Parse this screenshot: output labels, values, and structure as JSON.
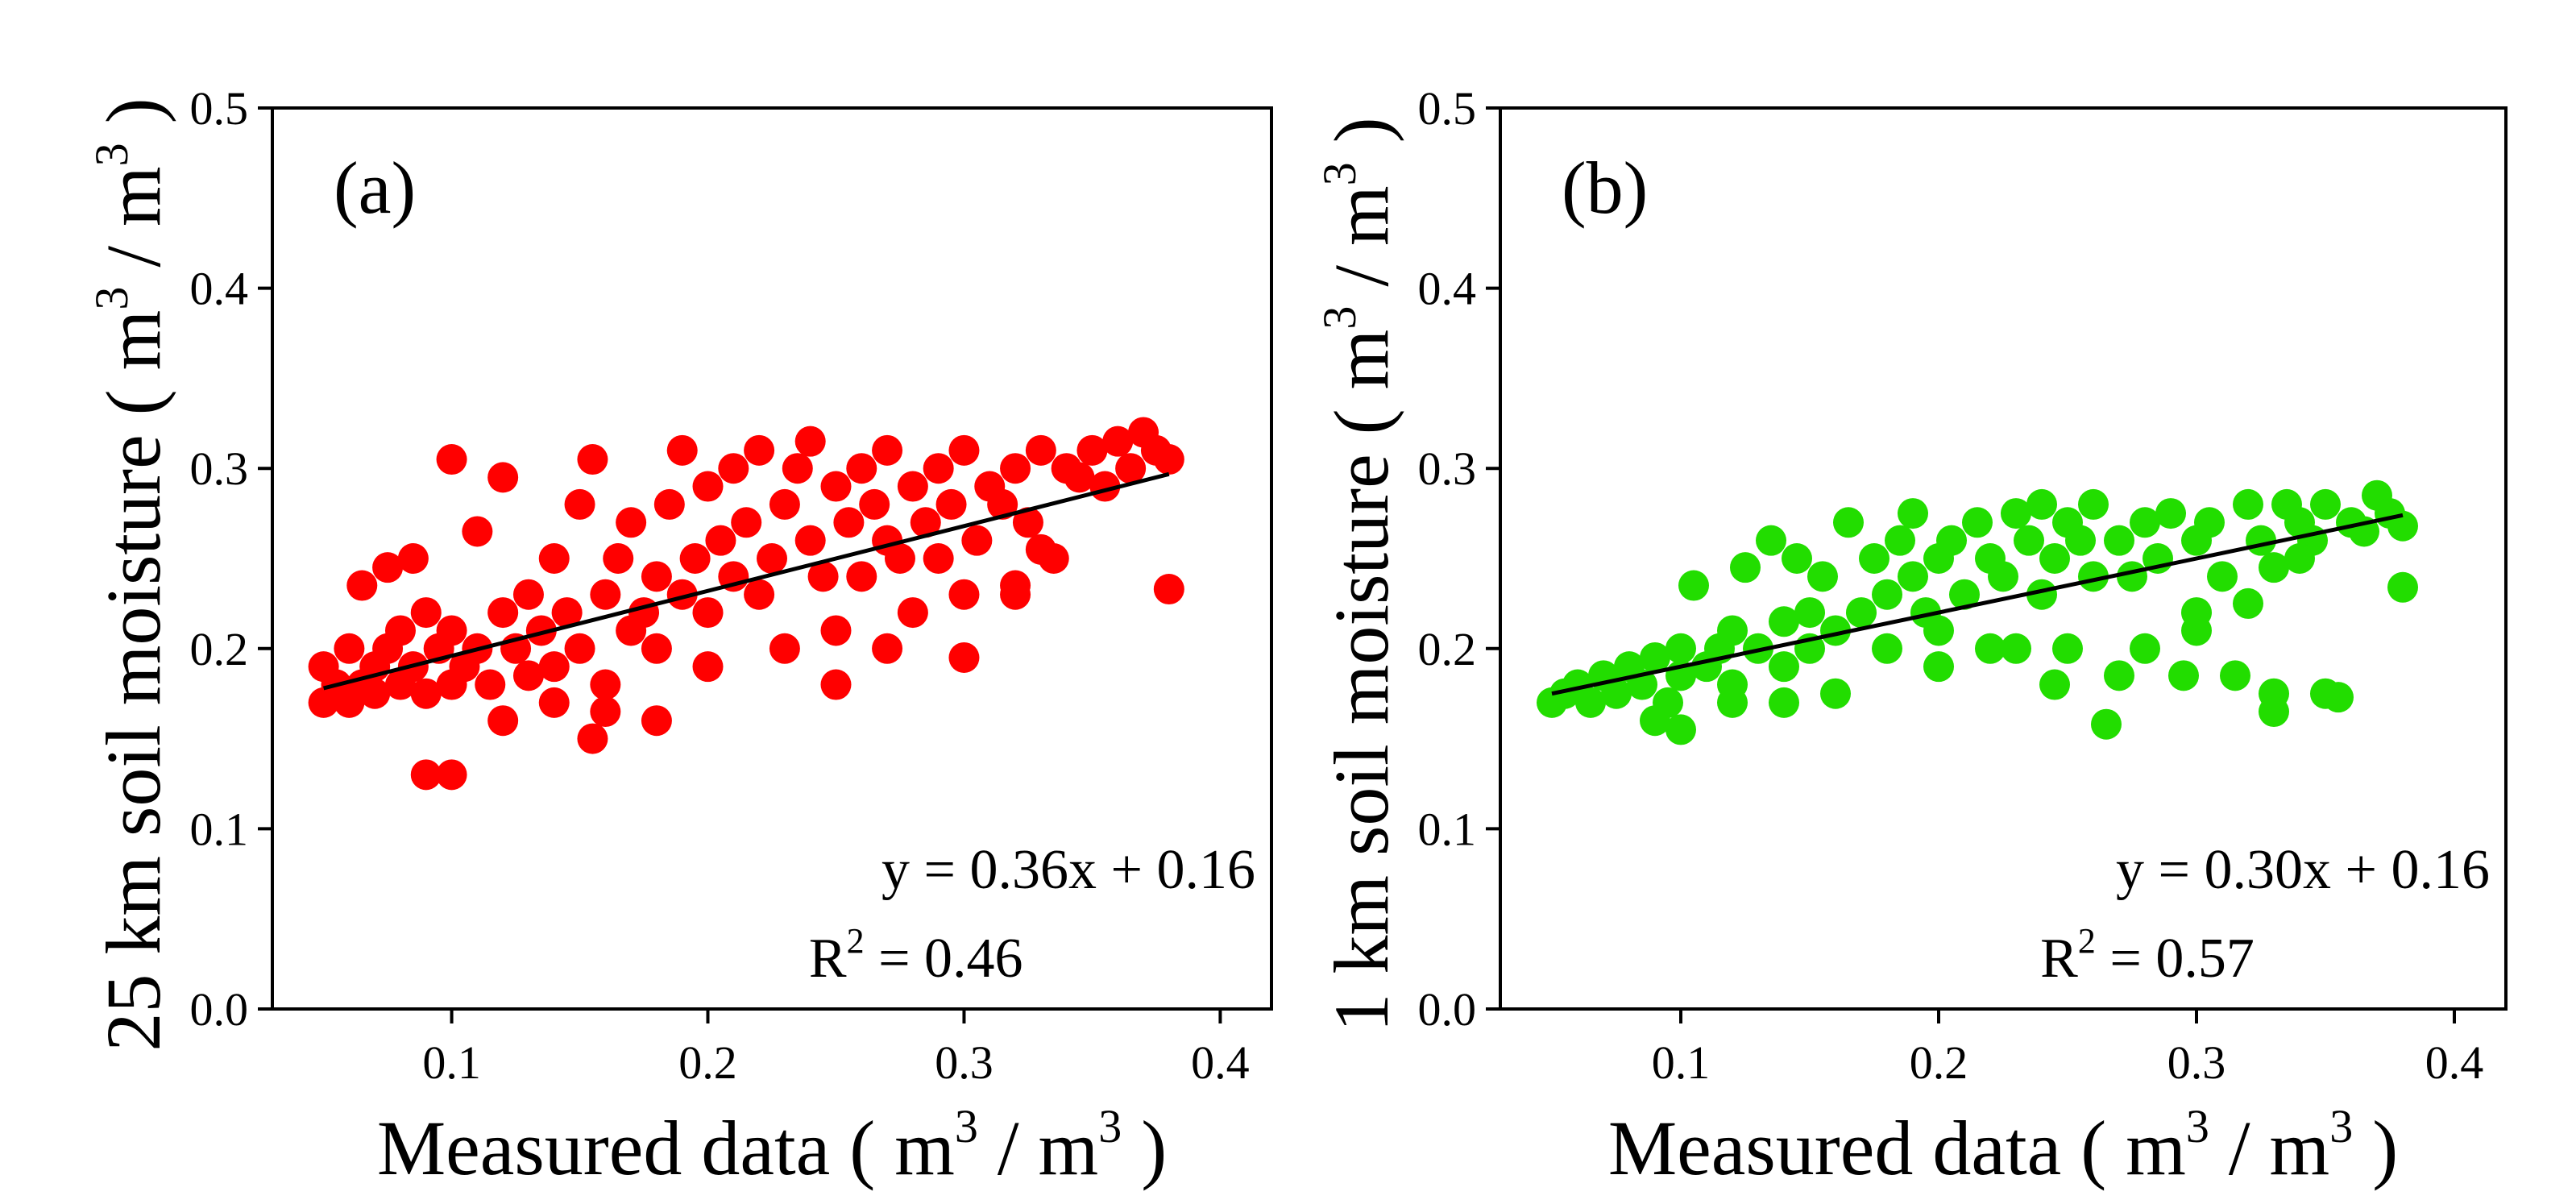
{
  "chart_data": [
    {
      "type": "scatter",
      "panel_label": "(a)",
      "xlabel": "Measured data ( m3 / m3 )",
      "ylabel": "25 km soil moisture ( m3 / m3 )",
      "axis_unit": {
        "base": "m",
        "sup": "3"
      },
      "xlim": [
        0.03,
        0.42
      ],
      "ylim": [
        0.0,
        0.5
      ],
      "xticks": [
        0.1,
        0.2,
        0.3,
        0.4
      ],
      "xtick_labels": [
        "0.1",
        "0.2",
        "0.3",
        "0.4"
      ],
      "yticks": [
        0.0,
        0.1,
        0.2,
        0.3,
        0.4,
        0.5
      ],
      "ytick_labels": [
        "0.0",
        "0.1",
        "0.2",
        "0.3",
        "0.4",
        "0.5"
      ],
      "grid": false,
      "point_color": "#ff0000",
      "fit_line": {
        "slope": 0.36,
        "intercept": 0.16,
        "x_range": [
          0.05,
          0.38
        ],
        "color": "#000000"
      },
      "equation": "y = 0.36x + 0.16",
      "r2_label": "R",
      "r2_sup": "2",
      "r2_value": " = 0.46",
      "points": [
        [
          0.05,
          0.17
        ],
        [
          0.05,
          0.19
        ],
        [
          0.055,
          0.18
        ],
        [
          0.06,
          0.17
        ],
        [
          0.06,
          0.2
        ],
        [
          0.065,
          0.18
        ],
        [
          0.07,
          0.19
        ],
        [
          0.07,
          0.175
        ],
        [
          0.075,
          0.2
        ],
        [
          0.08,
          0.18
        ],
        [
          0.08,
          0.21
        ],
        [
          0.085,
          0.19
        ],
        [
          0.09,
          0.175
        ],
        [
          0.09,
          0.22
        ],
        [
          0.095,
          0.2
        ],
        [
          0.1,
          0.18
        ],
        [
          0.1,
          0.21
        ],
        [
          0.1,
          0.305
        ],
        [
          0.105,
          0.19
        ],
        [
          0.11,
          0.2
        ],
        [
          0.11,
          0.265
        ],
        [
          0.115,
          0.18
        ],
        [
          0.12,
          0.22
        ],
        [
          0.12,
          0.295
        ],
        [
          0.125,
          0.2
        ],
        [
          0.13,
          0.185
        ],
        [
          0.13,
          0.23
        ],
        [
          0.135,
          0.21
        ],
        [
          0.14,
          0.19
        ],
        [
          0.14,
          0.25
        ],
        [
          0.145,
          0.22
        ],
        [
          0.15,
          0.2
        ],
        [
          0.15,
          0.28
        ],
        [
          0.155,
          0.305
        ],
        [
          0.16,
          0.23
        ],
        [
          0.16,
          0.18
        ],
        [
          0.165,
          0.25
        ],
        [
          0.17,
          0.21
        ],
        [
          0.17,
          0.27
        ],
        [
          0.175,
          0.22
        ],
        [
          0.18,
          0.24
        ],
        [
          0.18,
          0.2
        ],
        [
          0.185,
          0.28
        ],
        [
          0.19,
          0.23
        ],
        [
          0.19,
          0.31
        ],
        [
          0.195,
          0.25
        ],
        [
          0.2,
          0.22
        ],
        [
          0.2,
          0.29
        ],
        [
          0.205,
          0.26
        ],
        [
          0.21,
          0.24
        ],
        [
          0.21,
          0.3
        ],
        [
          0.215,
          0.27
        ],
        [
          0.22,
          0.23
        ],
        [
          0.22,
          0.31
        ],
        [
          0.225,
          0.25
        ],
        [
          0.23,
          0.28
        ],
        [
          0.23,
          0.2
        ],
        [
          0.235,
          0.3
        ],
        [
          0.24,
          0.26
        ],
        [
          0.24,
          0.315
        ],
        [
          0.245,
          0.24
        ],
        [
          0.25,
          0.29
        ],
        [
          0.25,
          0.21
        ],
        [
          0.255,
          0.27
        ],
        [
          0.26,
          0.3
        ],
        [
          0.26,
          0.24
        ],
        [
          0.265,
          0.28
        ],
        [
          0.27,
          0.26
        ],
        [
          0.27,
          0.31
        ],
        [
          0.275,
          0.25
        ],
        [
          0.28,
          0.29
        ],
        [
          0.28,
          0.22
        ],
        [
          0.285,
          0.27
        ],
        [
          0.29,
          0.3
        ],
        [
          0.29,
          0.25
        ],
        [
          0.295,
          0.28
        ],
        [
          0.3,
          0.31
        ],
        [
          0.3,
          0.195
        ],
        [
          0.305,
          0.26
        ],
        [
          0.31,
          0.29
        ],
        [
          0.315,
          0.28
        ],
        [
          0.32,
          0.3
        ],
        [
          0.32,
          0.23
        ],
        [
          0.325,
          0.27
        ],
        [
          0.33,
          0.31
        ],
        [
          0.335,
          0.25
        ],
        [
          0.34,
          0.3
        ],
        [
          0.345,
          0.295
        ],
        [
          0.35,
          0.31
        ],
        [
          0.355,
          0.29
        ],
        [
          0.36,
          0.315
        ],
        [
          0.365,
          0.3
        ],
        [
          0.37,
          0.32
        ],
        [
          0.375,
          0.31
        ],
        [
          0.38,
          0.305
        ],
        [
          0.38,
          0.233
        ],
        [
          0.09,
          0.13
        ],
        [
          0.1,
          0.13
        ],
        [
          0.155,
          0.15
        ],
        [
          0.16,
          0.165
        ],
        [
          0.18,
          0.16
        ],
        [
          0.065,
          0.235
        ],
        [
          0.075,
          0.245
        ],
        [
          0.085,
          0.25
        ],
        [
          0.12,
          0.16
        ],
        [
          0.14,
          0.17
        ],
        [
          0.2,
          0.19
        ],
        [
          0.25,
          0.18
        ],
        [
          0.27,
          0.2
        ],
        [
          0.3,
          0.23
        ],
        [
          0.32,
          0.235
        ],
        [
          0.33,
          0.255
        ]
      ]
    },
    {
      "type": "scatter",
      "panel_label": "(b)",
      "xlabel": "Measured data ( m3 / m3 )",
      "ylabel": "1 km soil moisture ( m3 / m3 )",
      "axis_unit": {
        "base": "m",
        "sup": "3"
      },
      "xlim": [
        0.03,
        0.42
      ],
      "ylim": [
        0.0,
        0.5
      ],
      "xticks": [
        0.1,
        0.2,
        0.3,
        0.4
      ],
      "xtick_labels": [
        "0.1",
        "0.2",
        "0.3",
        "0.4"
      ],
      "yticks": [
        0.0,
        0.1,
        0.2,
        0.3,
        0.4,
        0.5
      ],
      "ytick_labels": [
        "0.0",
        "0.1",
        "0.2",
        "0.3",
        "0.4",
        "0.5"
      ],
      "grid": false,
      "point_color": "#22dd00",
      "fit_line": {
        "slope": 0.3,
        "intercept": 0.16,
        "x_range": [
          0.05,
          0.38
        ],
        "color": "#000000"
      },
      "equation": "y = 0.30x + 0.16",
      "r2_label": "R",
      "r2_sup": "2",
      "r2_value": " = 0.57",
      "points": [
        [
          0.05,
          0.17
        ],
        [
          0.055,
          0.175
        ],
        [
          0.06,
          0.18
        ],
        [
          0.065,
          0.17
        ],
        [
          0.07,
          0.185
        ],
        [
          0.075,
          0.175
        ],
        [
          0.08,
          0.19
        ],
        [
          0.085,
          0.18
        ],
        [
          0.09,
          0.195
        ],
        [
          0.095,
          0.17
        ],
        [
          0.1,
          0.2
        ],
        [
          0.1,
          0.185
        ],
        [
          0.105,
          0.235
        ],
        [
          0.11,
          0.19
        ],
        [
          0.115,
          0.2
        ],
        [
          0.12,
          0.18
        ],
        [
          0.12,
          0.21
        ],
        [
          0.125,
          0.245
        ],
        [
          0.13,
          0.2
        ],
        [
          0.135,
          0.26
        ],
        [
          0.14,
          0.215
        ],
        [
          0.14,
          0.19
        ],
        [
          0.145,
          0.25
        ],
        [
          0.15,
          0.22
        ],
        [
          0.15,
          0.2
        ],
        [
          0.155,
          0.24
        ],
        [
          0.16,
          0.21
        ],
        [
          0.165,
          0.27
        ],
        [
          0.17,
          0.22
        ],
        [
          0.175,
          0.25
        ],
        [
          0.18,
          0.23
        ],
        [
          0.18,
          0.2
        ],
        [
          0.185,
          0.26
        ],
        [
          0.19,
          0.24
        ],
        [
          0.19,
          0.275
        ],
        [
          0.195,
          0.22
        ],
        [
          0.2,
          0.25
        ],
        [
          0.2,
          0.21
        ],
        [
          0.205,
          0.26
        ],
        [
          0.21,
          0.23
        ],
        [
          0.215,
          0.27
        ],
        [
          0.22,
          0.25
        ],
        [
          0.22,
          0.2
        ],
        [
          0.225,
          0.24
        ],
        [
          0.23,
          0.275
        ],
        [
          0.235,
          0.26
        ],
        [
          0.24,
          0.23
        ],
        [
          0.24,
          0.28
        ],
        [
          0.245,
          0.25
        ],
        [
          0.25,
          0.27
        ],
        [
          0.25,
          0.2
        ],
        [
          0.255,
          0.26
        ],
        [
          0.26,
          0.24
        ],
        [
          0.26,
          0.28
        ],
        [
          0.265,
          0.158
        ],
        [
          0.27,
          0.26
        ],
        [
          0.275,
          0.24
        ],
        [
          0.28,
          0.27
        ],
        [
          0.28,
          0.2
        ],
        [
          0.285,
          0.25
        ],
        [
          0.29,
          0.275
        ],
        [
          0.295,
          0.185
        ],
        [
          0.3,
          0.26
        ],
        [
          0.3,
          0.21
        ],
        [
          0.305,
          0.27
        ],
        [
          0.31,
          0.24
        ],
        [
          0.315,
          0.185
        ],
        [
          0.32,
          0.28
        ],
        [
          0.325,
          0.26
        ],
        [
          0.33,
          0.245
        ],
        [
          0.33,
          0.175
        ],
        [
          0.335,
          0.28
        ],
        [
          0.34,
          0.27
        ],
        [
          0.345,
          0.26
        ],
        [
          0.35,
          0.28
        ],
        [
          0.35,
          0.175
        ],
        [
          0.355,
          0.173
        ],
        [
          0.36,
          0.27
        ],
        [
          0.365,
          0.265
        ],
        [
          0.37,
          0.285
        ],
        [
          0.375,
          0.275
        ],
        [
          0.38,
          0.268
        ],
        [
          0.38,
          0.234
        ],
        [
          0.09,
          0.16
        ],
        [
          0.1,
          0.155
        ],
        [
          0.12,
          0.17
        ],
        [
          0.14,
          0.17
        ],
        [
          0.16,
          0.175
        ],
        [
          0.2,
          0.19
        ],
        [
          0.23,
          0.2
        ],
        [
          0.245,
          0.18
        ],
        [
          0.27,
          0.185
        ],
        [
          0.3,
          0.22
        ],
        [
          0.32,
          0.225
        ],
        [
          0.33,
          0.165
        ],
        [
          0.34,
          0.25
        ]
      ]
    }
  ]
}
